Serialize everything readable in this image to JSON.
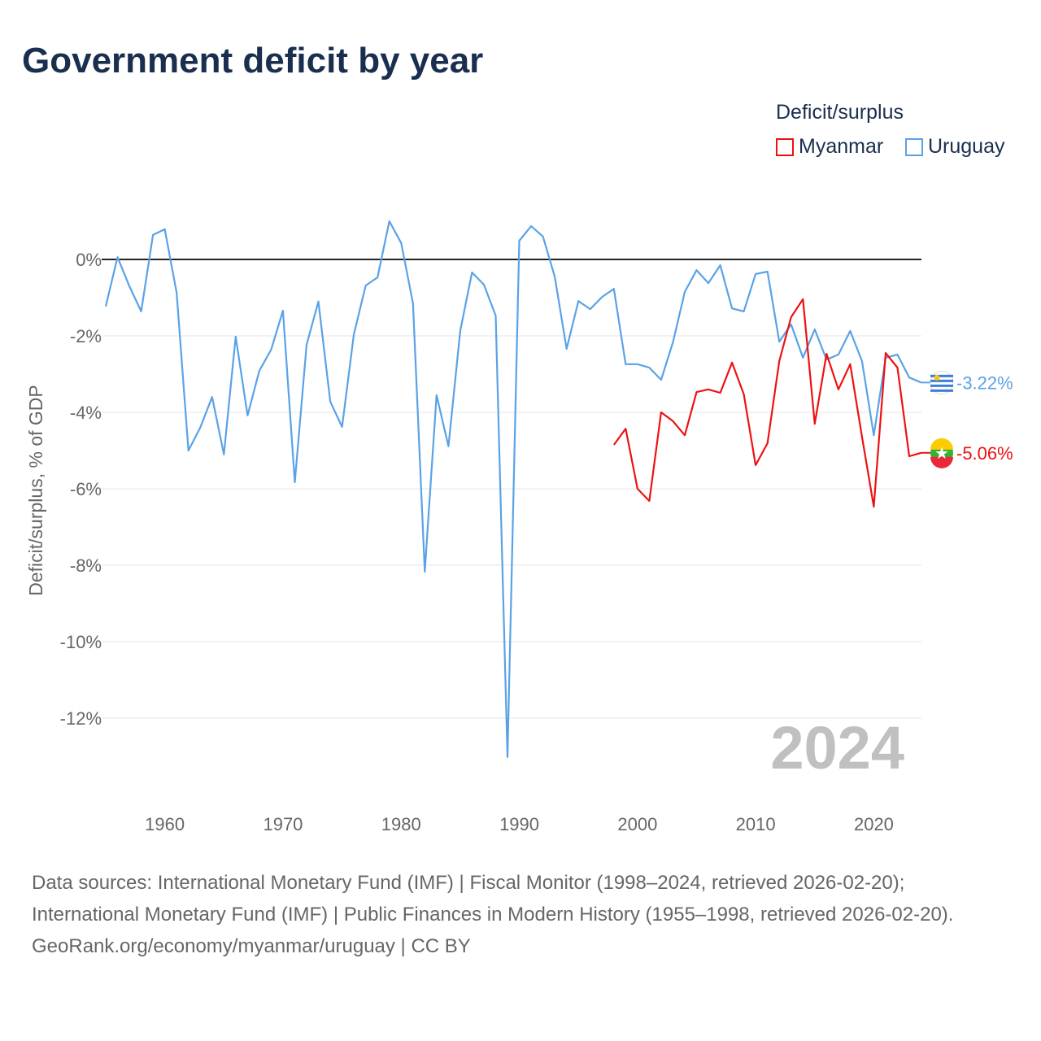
{
  "title": "Government deficit by year",
  "legend": {
    "title": "Deficit/surplus",
    "items": [
      {
        "label": "Myanmar",
        "color": "#ee1111"
      },
      {
        "label": "Uruguay",
        "color": "#5aa2e6"
      }
    ]
  },
  "year_watermark": "2024",
  "sources": {
    "line1": "Data sources: International Monetary Fund (IMF) | Fiscal Monitor (1998–2024, retrieved 2026-02-20); International Monetary Fund (IMF) | Public Finances in Modern History (1955–1998, retrieved 2026-02-20).",
    "line2": "GeoRank.org/economy/myanmar/uruguay | CC BY"
  },
  "chart_data": {
    "type": "line",
    "title": "Government deficit by year",
    "xlabel": "",
    "ylabel": "Deficit/surplus, % of GDP",
    "xlim": [
      1955,
      2024
    ],
    "ylim": [
      -14,
      1.5
    ],
    "x_ticks": [
      1960,
      1970,
      1980,
      1990,
      2000,
      2010,
      2020
    ],
    "y_ticks": [
      0,
      -2,
      -4,
      -6,
      -8,
      -10,
      -12
    ],
    "y_tick_labels": [
      "0%",
      "-2%",
      "-4%",
      "-6%",
      "-8%",
      "-10%",
      "-12%"
    ],
    "grid": true,
    "legend_position": "top-right",
    "series": [
      {
        "name": "Uruguay",
        "color": "#5aa2e6",
        "start_year": 1955,
        "end_label": "-3.22%",
        "values": [
          -1.23,
          0.06,
          -0.7,
          -1.36,
          0.64,
          0.79,
          -0.87,
          -5.0,
          -4.4,
          -3.6,
          -5.1,
          -2.02,
          -4.08,
          -2.91,
          -2.36,
          -1.34,
          -5.83,
          -2.23,
          -1.1,
          -3.72,
          -4.38,
          -1.96,
          -0.68,
          -0.47,
          1.0,
          0.43,
          -1.15,
          -8.17,
          -3.55,
          -4.89,
          -1.87,
          -0.34,
          -0.66,
          -1.47,
          -13.02,
          0.49,
          0.87,
          0.6,
          -0.45,
          -2.34,
          -1.09,
          -1.3,
          -0.98,
          -0.77,
          -2.74,
          -2.74,
          -2.83,
          -3.15,
          -2.17,
          -0.85,
          -0.28,
          -0.62,
          -0.15,
          -1.28,
          -1.36,
          -0.38,
          -0.32,
          -2.15,
          -1.7,
          -2.57,
          -1.83,
          -2.62,
          -2.49,
          -1.87,
          -2.66,
          -4.6,
          -2.57,
          -2.49,
          -3.09,
          -3.22
        ]
      },
      {
        "name": "Myanmar",
        "color": "#ee1111",
        "start_year": 1998,
        "end_label": "-5.06%",
        "values": [
          -4.85,
          -4.43,
          -6.0,
          -6.32,
          -4.0,
          -4.23,
          -4.6,
          -3.47,
          -3.4,
          -3.49,
          -2.7,
          -3.53,
          -5.38,
          -4.81,
          -2.66,
          -1.51,
          -1.04,
          -4.3,
          -2.47,
          -3.4,
          -2.74,
          -4.64,
          -6.47,
          -2.45,
          -2.83,
          -5.15,
          -5.06
        ]
      }
    ]
  }
}
